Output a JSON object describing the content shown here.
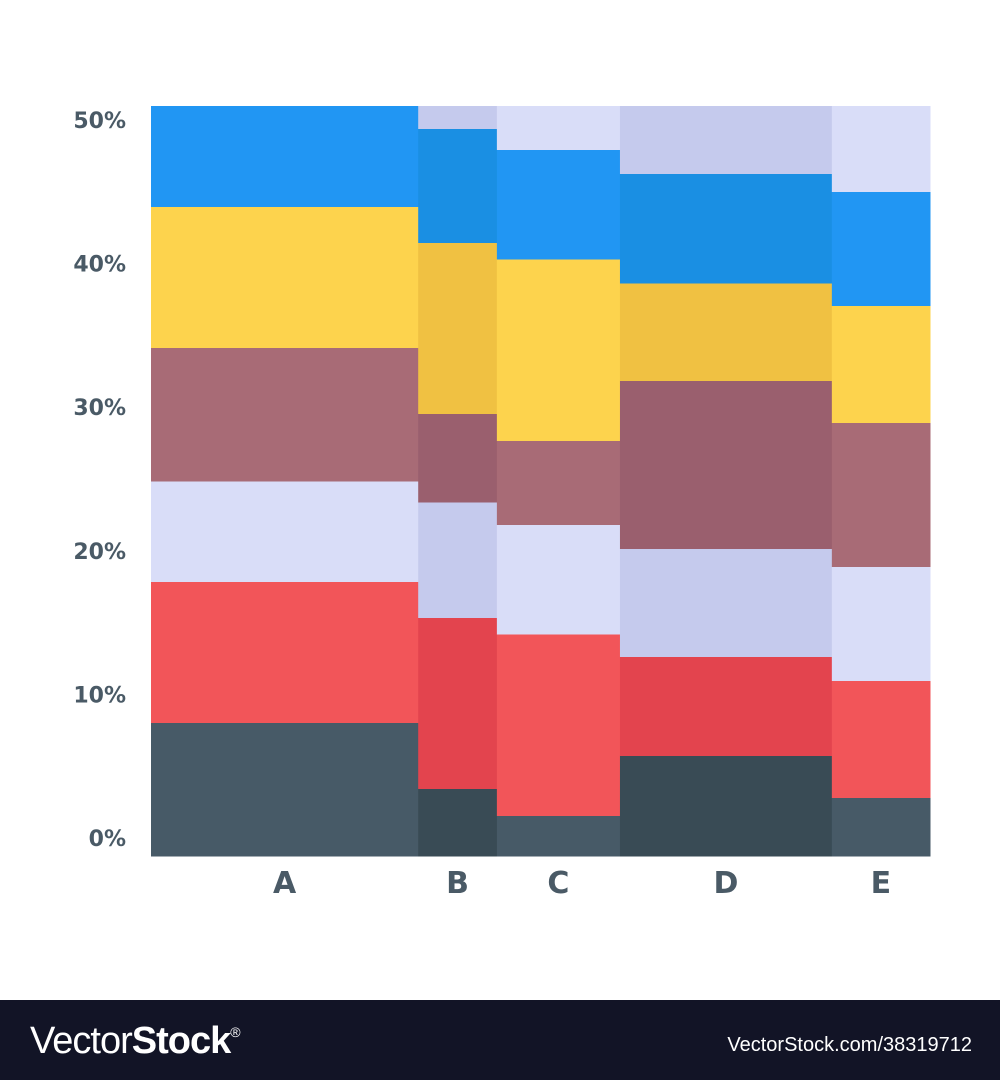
{
  "chart_data": {
    "type": "marimekko",
    "ylim": [
      0,
      50
    ],
    "yticks": [
      "0%",
      "10%",
      "20%",
      "30%",
      "40%",
      "50%"
    ],
    "ytick_values": [
      0,
      10,
      20,
      30,
      40,
      50
    ],
    "grid": false,
    "categories": [
      "A",
      "B",
      "C",
      "D",
      "E"
    ],
    "column_share_percent": [
      34.3,
      10.1,
      15.8,
      27.2,
      12.6
    ],
    "column_shade": [
      "light",
      "dark",
      "light",
      "dark",
      "light"
    ],
    "palette": {
      "light": [
        "#475a67",
        "#f25559",
        "#d9ddf8",
        "#a86b76",
        "#fdd34d",
        "#2196f3",
        "#d9ddf8"
      ],
      "dark": [
        "#394b55",
        "#e3444e",
        "#c5caed",
        "#9a5f6e",
        "#f0c142",
        "#1a8fe3",
        "#c5caed"
      ]
    },
    "segments": [
      [
        8.9,
        9.4,
        6.7,
        8.9,
        9.4,
        6.7
      ],
      [
        4.5,
        11.4,
        7.7,
        5.9,
        11.4,
        7.6,
        1.5
      ],
      [
        2.7,
        12.1,
        7.3,
        5.6,
        12.1,
        7.3,
        2.9
      ],
      [
        6.7,
        6.6,
        7.2,
        11.2,
        6.5,
        7.3,
        4.5
      ],
      [
        3.9,
        7.8,
        7.6,
        9.6,
        7.8,
        7.6,
        5.7
      ]
    ]
  },
  "watermark": {
    "brand_light": "Vector",
    "brand_bold": "Stock",
    "brand_mark": "®",
    "id": "VectorStock.com/38319712"
  }
}
